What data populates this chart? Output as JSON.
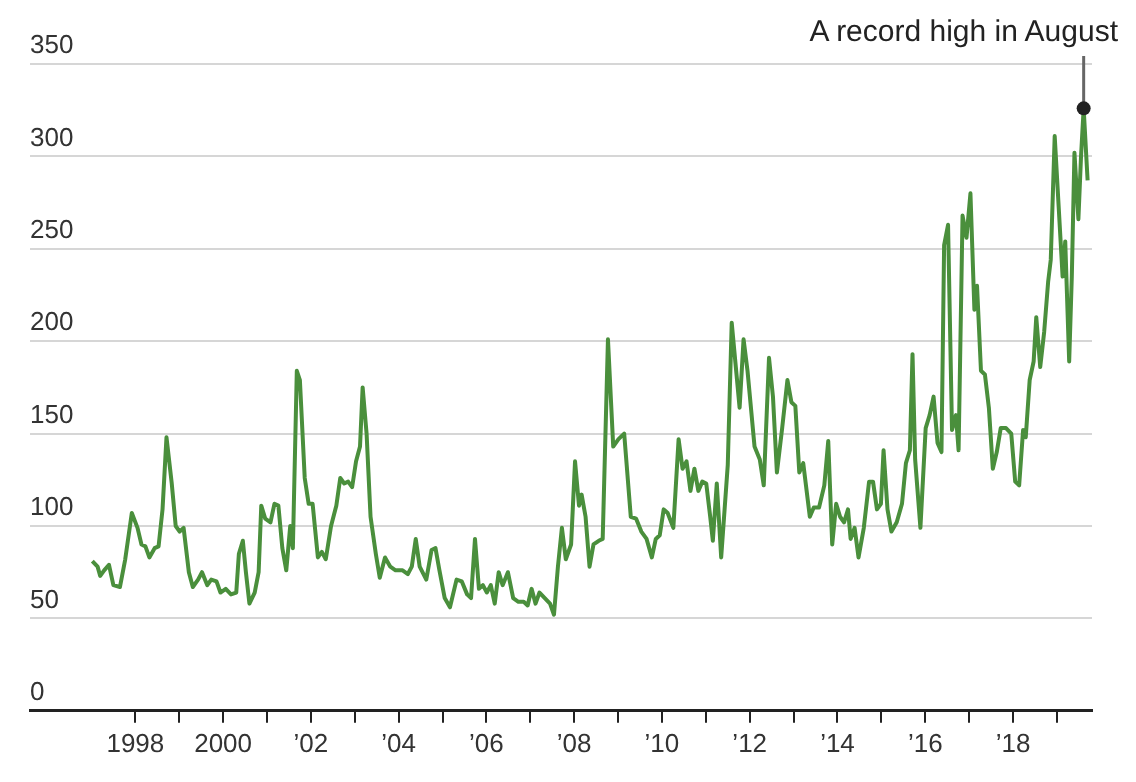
{
  "chart_data": {
    "type": "line",
    "annotations": [
      {
        "text": "A record high in August",
        "x": 2019.61,
        "y": 326
      }
    ],
    "xlim": [
      1995.6,
      2019.8
    ],
    "ylim": [
      0,
      350
    ],
    "yticks": [
      0,
      50,
      100,
      150,
      200,
      250,
      300,
      350
    ],
    "xticks": [
      {
        "value": 1998,
        "label": "1998"
      },
      {
        "value": 1999,
        "label": null
      },
      {
        "value": 2000,
        "label": "2000"
      },
      {
        "value": 2001,
        "label": null
      },
      {
        "value": 2002,
        "label": "’02"
      },
      {
        "value": 2003,
        "label": null
      },
      {
        "value": 2004,
        "label": "’04"
      },
      {
        "value": 2005,
        "label": null
      },
      {
        "value": 2006,
        "label": "’06"
      },
      {
        "value": 2007,
        "label": null
      },
      {
        "value": 2008,
        "label": "’08"
      },
      {
        "value": 2009,
        "label": null
      },
      {
        "value": 2010,
        "label": "’10"
      },
      {
        "value": 2011,
        "label": null
      },
      {
        "value": 2012,
        "label": "’12"
      },
      {
        "value": 2013,
        "label": null
      },
      {
        "value": 2014,
        "label": "’14"
      },
      {
        "value": 2015,
        "label": null
      },
      {
        "value": 2016,
        "label": "’16"
      },
      {
        "value": 2017,
        "label": null
      },
      {
        "value": 2018,
        "label": "’18"
      },
      {
        "value": 2019,
        "label": null
      }
    ],
    "grid": "y",
    "legend": false,
    "marker": "none",
    "line_style": "solid",
    "x": [
      1997.02,
      1997.14,
      1997.2,
      1997.29,
      1997.4,
      1997.5,
      1997.65,
      1997.77,
      1997.92,
      1998.05,
      1998.14,
      1998.23,
      1998.32,
      1998.44,
      1998.53,
      1998.62,
      1998.71,
      1998.83,
      1998.92,
      1999.01,
      1999.1,
      1999.22,
      1999.31,
      1999.43,
      1999.52,
      1999.64,
      1999.73,
      1999.85,
      1999.94,
      2000.06,
      2000.18,
      2000.3,
      2000.36,
      2000.45,
      2000.52,
      2000.6,
      2000.72,
      2000.81,
      2000.87,
      2000.96,
      2001.08,
      2001.17,
      2001.26,
      2001.35,
      2001.44,
      2001.53,
      2001.59,
      2001.68,
      2001.75,
      2001.86,
      2001.95,
      2002.04,
      2002.16,
      2002.25,
      2002.34,
      2002.46,
      2002.58,
      2002.67,
      2002.76,
      2002.85,
      2002.94,
      2003.03,
      2003.12,
      2003.18,
      2003.27,
      2003.36,
      2003.48,
      2003.57,
      2003.69,
      2003.81,
      2003.93,
      2004.09,
      2004.21,
      2004.3,
      2004.39,
      2004.48,
      2004.63,
      2004.75,
      2004.84,
      2004.93,
      2005.05,
      2005.17,
      2005.32,
      2005.44,
      2005.56,
      2005.65,
      2005.74,
      2005.83,
      2005.92,
      2006.01,
      2006.1,
      2006.19,
      2006.28,
      2006.37,
      2006.49,
      2006.61,
      2006.73,
      2006.85,
      2006.94,
      2007.03,
      2007.12,
      2007.21,
      2007.33,
      2007.45,
      2007.54,
      2007.63,
      2007.72,
      2007.81,
      2007.93,
      2008.02,
      2008.11,
      2008.17,
      2008.26,
      2008.35,
      2008.44,
      2008.56,
      2008.65,
      2008.77,
      2008.89,
      2009.01,
      2009.14,
      2009.29,
      2009.41,
      2009.53,
      2009.65,
      2009.77,
      2009.86,
      2009.95,
      2010.04,
      2010.13,
      2010.26,
      2010.38,
      2010.47,
      2010.56,
      2010.65,
      2010.74,
      2010.83,
      2010.92,
      2011.01,
      2011.1,
      2011.16,
      2011.25,
      2011.35,
      2011.5,
      2011.59,
      2011.77,
      2011.86,
      2011.95,
      2012.11,
      2012.23,
      2012.32,
      2012.44,
      2012.53,
      2012.62,
      2012.74,
      2012.86,
      2012.95,
      2013.04,
      2013.13,
      2013.22,
      2013.37,
      2013.46,
      2013.58,
      2013.7,
      2013.79,
      2013.88,
      2013.97,
      2014.06,
      2014.15,
      2014.24,
      2014.3,
      2014.39,
      2014.48,
      2014.6,
      2014.72,
      2014.81,
      2014.9,
      2014.99,
      2015.05,
      2015.14,
      2015.23,
      2015.35,
      2015.47,
      2015.56,
      2015.65,
      2015.71,
      2015.77,
      2015.89,
      2016.01,
      2016.1,
      2016.19,
      2016.28,
      2016.37,
      2016.43,
      2016.52,
      2016.61,
      2016.7,
      2016.76,
      2016.85,
      2016.94,
      2017.03,
      2017.12,
      2017.18,
      2017.27,
      2017.36,
      2017.45,
      2017.54,
      2017.63,
      2017.72,
      2017.84,
      2017.96,
      2018.05,
      2018.14,
      2018.23,
      2018.29,
      2018.38,
      2018.47,
      2018.53,
      2018.62,
      2018.71,
      2018.8,
      2018.86,
      2018.95,
      2019.04,
      2019.13,
      2019.19,
      2019.28,
      2019.34,
      2019.4,
      2019.49,
      2019.55,
      2019.61,
      2019.7
    ],
    "series": [
      {
        "color": "#4a8f3c",
        "values": [
          81,
          78,
          73,
          76,
          79,
          68,
          67,
          82,
          107,
          99,
          90,
          89,
          83,
          88,
          89,
          109,
          148,
          123,
          100,
          97,
          99,
          75,
          67,
          71,
          75,
          68,
          71,
          70,
          64,
          66,
          63,
          64,
          85,
          92,
          75,
          58,
          64,
          75,
          111,
          104,
          102,
          112,
          111,
          88,
          76,
          100,
          88,
          184,
          179,
          126,
          112,
          112,
          83,
          86,
          82,
          100,
          111,
          126,
          123,
          124,
          121,
          135,
          143,
          175,
          150,
          105,
          85,
          72,
          83,
          78,
          76,
          76,
          74,
          78,
          93,
          78,
          71,
          87,
          88,
          76,
          61,
          56,
          71,
          70,
          63,
          61,
          93,
          66,
          68,
          64,
          68,
          58,
          75,
          68,
          75,
          61,
          59,
          59,
          57,
          66,
          58,
          64,
          61,
          58,
          52,
          78,
          99,
          82,
          90,
          135,
          111,
          117,
          105,
          78,
          90,
          92,
          93,
          201,
          143,
          147,
          150,
          105,
          104,
          97,
          93,
          83,
          93,
          95,
          109,
          107,
          99,
          147,
          131,
          135,
          119,
          131,
          119,
          124,
          123,
          105,
          92,
          123,
          83,
          133,
          210,
          164,
          201,
          184,
          143,
          136,
          122,
          191,
          170,
          129,
          153,
          179,
          167,
          165,
          129,
          134,
          105,
          110,
          110,
          122,
          146,
          90,
          112,
          105,
          102,
          109,
          93,
          99,
          83,
          99,
          124,
          124,
          109,
          112,
          141,
          109,
          97,
          102,
          112,
          134,
          141,
          193,
          136,
          99,
          153,
          160,
          170,
          145,
          140,
          252,
          263,
          152,
          160,
          141,
          268,
          256,
          280,
          217,
          230,
          184,
          182,
          164,
          131,
          140,
          153,
          153,
          150,
          124,
          122,
          152,
          148,
          179,
          189,
          213,
          186,
          205,
          232,
          244,
          311,
          273,
          235,
          254,
          189,
          235,
          302,
          266,
          300,
          326,
          287
        ]
      }
    ]
  }
}
